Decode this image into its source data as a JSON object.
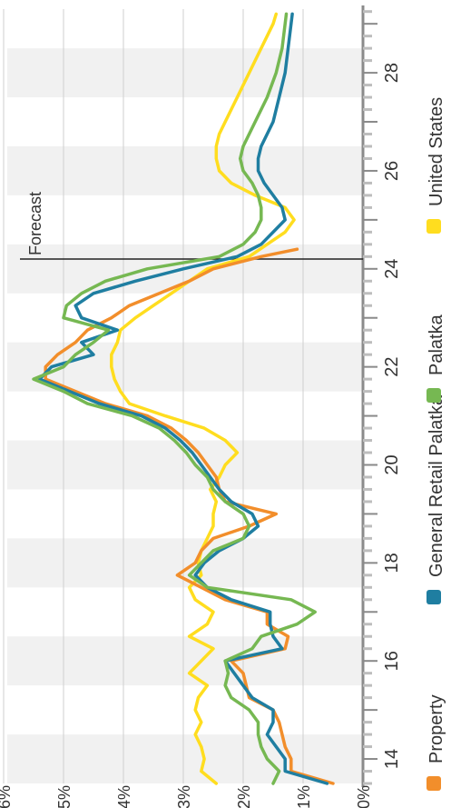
{
  "chart_data": {
    "type": "line",
    "orientation": "rotated-90-clockwise",
    "annotation": "Forecast",
    "forecast_x": 24.2,
    "xlim": [
      13.5,
      29.3
    ],
    "ylim": [
      0,
      6
    ],
    "x_ticks": [
      "14",
      "16",
      "18",
      "20",
      "22",
      "24",
      "26",
      "28"
    ],
    "y_ticks": [
      "0%",
      "1%",
      "2%",
      "3%",
      "4%",
      "5%",
      "6%"
    ],
    "grid": true,
    "legend_position": "right",
    "series": [
      {
        "name": "Property",
        "color": "#F28E2B",
        "x": [
          13.5,
          13.75,
          14.0,
          14.25,
          14.5,
          14.75,
          15.0,
          15.25,
          15.5,
          15.75,
          16.0,
          16.25,
          16.5,
          16.75,
          17.0,
          17.25,
          17.5,
          17.75,
          18.0,
          18.25,
          18.5,
          18.75,
          19.0,
          19.25,
          19.5,
          19.75,
          20.0,
          20.25,
          20.5,
          20.75,
          21.0,
          21.25,
          21.5,
          21.75,
          22.0,
          22.25,
          22.5,
          22.75,
          23.0,
          23.25,
          23.5,
          23.75,
          24.0,
          24.25,
          24.4
        ],
        "y": [
          0.5,
          1.2,
          1.2,
          1.3,
          1.35,
          1.4,
          1.5,
          1.9,
          1.95,
          2.0,
          2.2,
          1.3,
          1.25,
          1.6,
          1.6,
          2.3,
          2.7,
          3.1,
          2.8,
          2.7,
          2.5,
          1.9,
          1.45,
          2.3,
          2.4,
          2.45,
          2.6,
          2.75,
          2.95,
          3.2,
          3.6,
          4.3,
          4.8,
          5.3,
          5.3,
          5.1,
          4.8,
          4.6,
          4.2,
          3.9,
          3.4,
          2.9,
          2.5,
          1.7,
          1.1
        ]
      },
      {
        "name": "General Retail Palatka",
        "color": "#1F7EA1",
        "x": [
          13.5,
          13.75,
          14.0,
          14.25,
          14.5,
          14.75,
          15.0,
          15.25,
          15.5,
          15.75,
          16.0,
          16.25,
          16.5,
          16.75,
          17.0,
          17.25,
          17.5,
          17.75,
          18.0,
          18.25,
          18.5,
          18.75,
          19.0,
          19.25,
          19.5,
          19.75,
          20.0,
          20.25,
          20.5,
          20.75,
          21.0,
          21.25,
          21.5,
          21.75,
          22.0,
          22.25,
          22.5,
          22.75,
          23.0,
          23.25,
          23.5,
          23.75,
          24.0,
          24.25,
          24.5,
          24.75,
          25.0,
          25.25,
          25.5,
          25.75,
          26.0,
          26.25,
          26.5,
          26.75,
          27.0,
          27.5,
          28.0,
          28.5,
          29.0,
          29.2
        ],
        "y": [
          0.6,
          1.3,
          1.3,
          1.45,
          1.6,
          1.5,
          1.5,
          1.85,
          2.0,
          2.15,
          2.3,
          1.35,
          1.5,
          1.55,
          1.55,
          2.2,
          2.6,
          2.8,
          2.65,
          2.4,
          2.0,
          1.75,
          1.85,
          2.2,
          2.4,
          2.55,
          2.7,
          2.85,
          3.05,
          3.3,
          3.7,
          4.4,
          4.9,
          5.4,
          5.2,
          4.5,
          4.7,
          4.1,
          4.7,
          4.8,
          4.5,
          3.8,
          3.0,
          2.1,
          1.7,
          1.5,
          1.3,
          1.35,
          1.5,
          1.65,
          1.75,
          1.75,
          1.7,
          1.6,
          1.5,
          1.4,
          1.3,
          1.25,
          1.2,
          1.18
        ]
      },
      {
        "name": "Palatka",
        "color": "#76B852",
        "x": [
          13.5,
          13.75,
          14.0,
          14.25,
          14.5,
          14.75,
          15.0,
          15.25,
          15.5,
          15.75,
          16.0,
          16.25,
          16.5,
          16.75,
          17.0,
          17.25,
          17.5,
          17.75,
          18.0,
          18.25,
          18.5,
          18.75,
          19.0,
          19.25,
          19.5,
          19.75,
          20.0,
          20.25,
          20.5,
          20.75,
          21.0,
          21.25,
          21.5,
          21.75,
          22.0,
          22.25,
          22.5,
          22.75,
          23.0,
          23.25,
          23.5,
          23.75,
          24.0,
          24.25,
          24.5,
          24.75,
          25.0,
          25.25,
          25.5,
          25.75,
          26.0,
          26.25,
          26.5,
          26.75,
          27.0,
          27.5,
          28.0,
          28.5,
          29.0,
          29.2
        ],
        "y": [
          1.5,
          1.4,
          1.6,
          1.7,
          1.75,
          1.75,
          1.9,
          2.2,
          2.3,
          2.25,
          2.3,
          1.85,
          1.7,
          1.1,
          0.8,
          1.2,
          2.6,
          2.9,
          2.7,
          2.5,
          2.0,
          1.9,
          2.0,
          2.3,
          2.5,
          2.6,
          2.8,
          2.95,
          3.15,
          3.4,
          3.85,
          4.6,
          5.0,
          5.5,
          5.0,
          4.8,
          4.5,
          4.25,
          5.0,
          4.95,
          4.7,
          4.3,
          3.6,
          2.4,
          2.0,
          1.8,
          1.7,
          1.7,
          1.75,
          1.85,
          2.0,
          2.05,
          2.0,
          1.9,
          1.8,
          1.6,
          1.45,
          1.35,
          1.3,
          1.28
        ]
      },
      {
        "name": "United States",
        "color": "#FFDD1F",
        "x": [
          13.5,
          13.75,
          14.0,
          14.25,
          14.5,
          14.75,
          15.0,
          15.25,
          15.5,
          15.75,
          16.0,
          16.25,
          16.5,
          16.75,
          17.0,
          17.25,
          17.5,
          17.75,
          18.0,
          18.25,
          18.5,
          18.75,
          19.0,
          19.25,
          19.5,
          19.75,
          20.0,
          20.25,
          20.5,
          20.75,
          21.0,
          21.25,
          21.5,
          21.75,
          22.0,
          22.25,
          22.5,
          22.75,
          23.0,
          23.25,
          23.5,
          23.75,
          24.0,
          24.25,
          24.5,
          24.75,
          25.0,
          25.25,
          25.5,
          25.75,
          26.0,
          26.25,
          26.5,
          26.75,
          27.0,
          27.5,
          28.0,
          28.5,
          29.0,
          29.2
        ],
        "y": [
          2.45,
          2.7,
          2.65,
          2.7,
          2.8,
          2.7,
          2.8,
          2.75,
          2.6,
          2.9,
          2.7,
          2.5,
          2.9,
          2.6,
          2.5,
          2.8,
          2.9,
          2.7,
          2.75,
          2.7,
          2.6,
          2.5,
          2.5,
          2.45,
          2.55,
          2.4,
          2.3,
          2.1,
          2.3,
          2.65,
          3.3,
          3.9,
          4.05,
          4.15,
          4.2,
          4.2,
          4.1,
          4.05,
          3.8,
          3.5,
          3.2,
          2.9,
          2.6,
          1.9,
          1.6,
          1.3,
          1.15,
          1.3,
          1.8,
          2.2,
          2.4,
          2.45,
          2.45,
          2.4,
          2.3,
          2.1,
          1.9,
          1.7,
          1.5,
          1.45
        ]
      }
    ]
  }
}
